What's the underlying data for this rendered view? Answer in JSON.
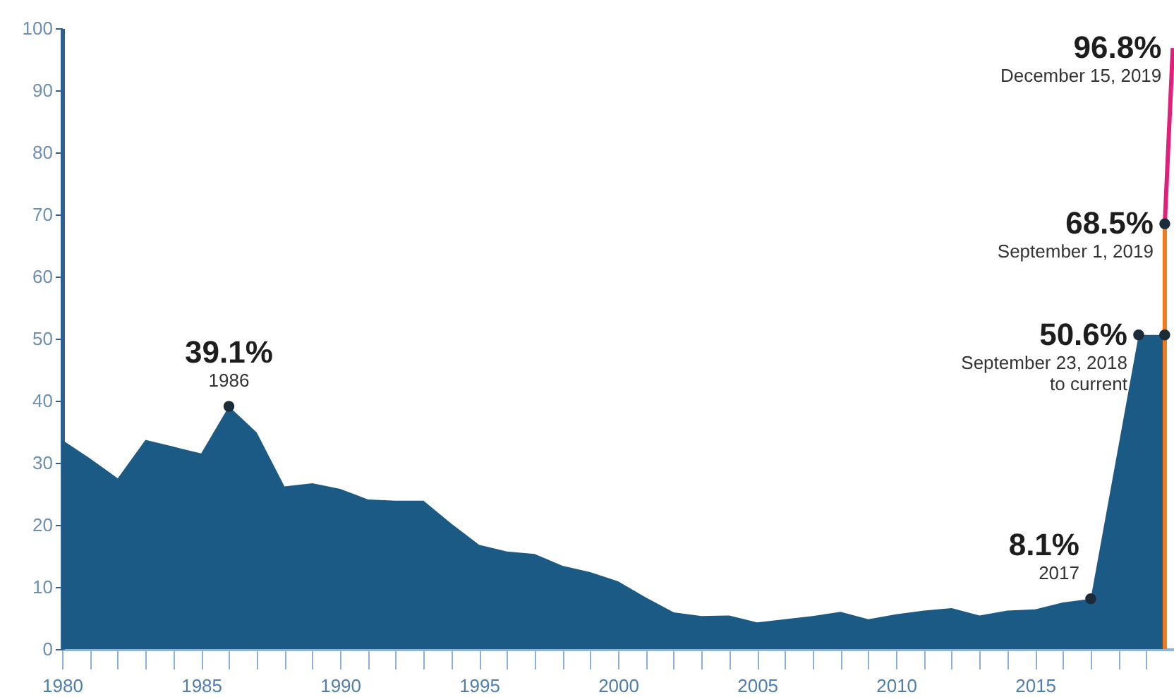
{
  "chart_data": {
    "type": "area",
    "x": [
      "1980",
      "1981",
      "1982",
      "1983",
      "1984",
      "1985",
      "1986",
      "1987",
      "1988",
      "1989",
      "1990",
      "1991",
      "1992",
      "1993",
      "1994",
      "1995",
      "1996",
      "1997",
      "1998",
      "1999",
      "2000",
      "2001",
      "2002",
      "2003",
      "2004",
      "2005",
      "2006",
      "2007",
      "2008",
      "2009",
      "2010",
      "2011",
      "2012",
      "2013",
      "2014",
      "2015",
      "2016",
      "2017",
      "2018-09-23",
      "2019-08-31"
    ],
    "series": [
      {
        "color": "#1b5a84",
        "values": [
          33.7,
          30.7,
          27.5,
          33.7,
          32.6,
          31.5,
          39.1,
          34.9,
          26.2,
          26.7,
          25.8,
          24.1,
          23.9,
          23.9,
          20.2,
          16.8,
          15.7,
          15.3,
          13.4,
          12.4,
          10.9,
          8.3,
          5.9,
          5.3,
          5.4,
          4.3,
          4.8,
          5.3,
          6.0,
          4.8,
          5.6,
          6.2,
          6.6,
          5.4,
          6.2,
          6.4,
          7.5,
          8.1,
          50.6,
          50.6
        ]
      },
      {
        "type": "line",
        "color": "#f07b1f",
        "x": [
          "2019-09-01",
          "2019-09-01"
        ],
        "values": [
          0,
          68.5
        ]
      },
      {
        "type": "line",
        "color": "#e0207a",
        "x": [
          "2019-09-01",
          "2019-12-15"
        ],
        "values": [
          68.5,
          96.8
        ]
      },
      {
        "type": "scatter",
        "color": "#1c2b3a",
        "x": [
          "1986",
          "2017",
          "2018-09-23",
          "2019-08-31",
          "2019-09-01"
        ],
        "values": [
          39.1,
          8.1,
          50.6,
          50.6,
          68.5
        ]
      }
    ],
    "xlim": [
      "1980",
      "2019-12-31"
    ],
    "xticks": [
      {
        "value": "1980",
        "label": "1980"
      },
      {
        "value": "1981",
        "label": null
      },
      {
        "value": "1982",
        "label": null
      },
      {
        "value": "1983",
        "label": null
      },
      {
        "value": "1984",
        "label": null
      },
      {
        "value": "1985",
        "label": "1985"
      },
      {
        "value": "1986",
        "label": null
      },
      {
        "value": "1987",
        "label": null
      },
      {
        "value": "1988",
        "label": null
      },
      {
        "value": "1989",
        "label": null
      },
      {
        "value": "1990",
        "label": "1990"
      },
      {
        "value": "1991",
        "label": null
      },
      {
        "value": "1992",
        "label": null
      },
      {
        "value": "1993",
        "label": null
      },
      {
        "value": "1994",
        "label": null
      },
      {
        "value": "1995",
        "label": "1995"
      },
      {
        "value": "1996",
        "label": null
      },
      {
        "value": "1997",
        "label": null
      },
      {
        "value": "1998",
        "label": null
      },
      {
        "value": "1999",
        "label": null
      },
      {
        "value": "2000",
        "label": "2000"
      },
      {
        "value": "2001",
        "label": null
      },
      {
        "value": "2002",
        "label": null
      },
      {
        "value": "2003",
        "label": null
      },
      {
        "value": "2004",
        "label": null
      },
      {
        "value": "2005",
        "label": "2005"
      },
      {
        "value": "2006",
        "label": null
      },
      {
        "value": "2007",
        "label": null
      },
      {
        "value": "2008",
        "label": null
      },
      {
        "value": "2009",
        "label": null
      },
      {
        "value": "2010",
        "label": "2010"
      },
      {
        "value": "2011",
        "label": null
      },
      {
        "value": "2012",
        "label": null
      },
      {
        "value": "2013",
        "label": null
      },
      {
        "value": "2014",
        "label": null
      },
      {
        "value": "2015",
        "label": "2015"
      },
      {
        "value": "2016",
        "label": null
      },
      {
        "value": "2017",
        "label": null
      },
      {
        "value": "2018",
        "label": null
      },
      {
        "value": "2019",
        "label": null
      }
    ],
    "ylim": [
      0,
      100
    ],
    "yticks": [
      0,
      10,
      20,
      30,
      40,
      50,
      60,
      70,
      80,
      90,
      100
    ],
    "annotations": [
      {
        "text": "39.1%",
        "x": "1986",
        "y": 39.1
      },
      {
        "text": "1986",
        "x": "1986",
        "y": 39.1
      },
      {
        "text": "8.1%",
        "x": "2017",
        "y": 8.1
      },
      {
        "text": "2017",
        "x": "2017",
        "y": 8.1
      },
      {
        "text": "50.6%",
        "x": "2018-09-23",
        "y": 50.6
      },
      {
        "text": "September 23, 2018",
        "x": "2018-09-23",
        "y": 50.6
      },
      {
        "text": "to current",
        "x": "2018-09-23",
        "y": 50.6
      },
      {
        "text": "68.5%",
        "x": "2019-09-01",
        "y": 68.5
      },
      {
        "text": "September 1, 2019",
        "x": "2019-09-01",
        "y": 68.5
      },
      {
        "text": "96.8%",
        "x": "2019-12-15",
        "y": 96.8
      },
      {
        "text": "December 15, 2019",
        "x": "2019-12-15",
        "y": 96.8
      }
    ]
  }
}
